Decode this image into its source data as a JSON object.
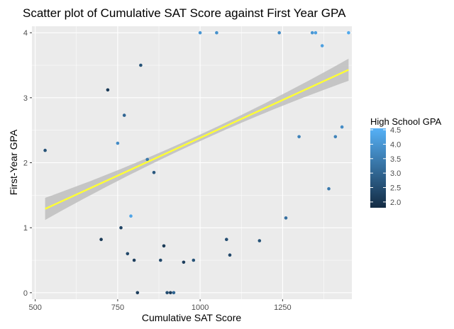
{
  "chart_data": {
    "type": "scatter",
    "title": "Scatter plot of Cumulative SAT Score against First Year GPA",
    "xlabel": "Cumulative SAT Score",
    "ylabel": "First-Year GPA",
    "xlim": [
      490,
      1460
    ],
    "ylim": [
      -0.1,
      4.1
    ],
    "x_ticks": [
      500,
      750,
      1000,
      1250
    ],
    "y_ticks": [
      0,
      1,
      2,
      3,
      4
    ],
    "grid": true,
    "colors": {
      "panel_background": "#ebebeb",
      "gridline": "#ffffff",
      "trend_line": "#ffff33",
      "confidence_band": "#bebebe",
      "low": "#132b43",
      "high": "#56b1f7"
    },
    "legend": {
      "title": "High School GPA",
      "position": "right",
      "ticks": [
        2.0,
        2.5,
        3.0,
        3.5,
        4.0,
        4.5
      ],
      "tick_labels": [
        "2.0",
        "2.5",
        "3.0",
        "3.5",
        "4.0",
        "4.5"
      ],
      "range": [
        1.8,
        4.55
      ]
    },
    "trend": {
      "method": "linear fit",
      "x_range": [
        530,
        1450
      ],
      "y_start": 1.29,
      "y_end": 3.43,
      "band_halfwidth_ends": 0.17,
      "band_halfwidth_mid": 0.05
    },
    "series": [
      {
        "points": [
          [
            530,
            2.19,
            2.6
          ],
          [
            700,
            0.82,
            2.1
          ],
          [
            720,
            3.12,
            2.1
          ],
          [
            750,
            2.3,
            3.8
          ],
          [
            760,
            1.0,
            2.3
          ],
          [
            770,
            2.73,
            3.0
          ],
          [
            780,
            0.6,
            2.4
          ],
          [
            790,
            1.18,
            4.3
          ],
          [
            800,
            0.5,
            2.2
          ],
          [
            810,
            0.0,
            2.2
          ],
          [
            820,
            3.5,
            2.6
          ],
          [
            840,
            2.05,
            3.4
          ],
          [
            860,
            1.85,
            2.7
          ],
          [
            880,
            0.5,
            2.4
          ],
          [
            890,
            0.72,
            2.1
          ],
          [
            900,
            0.0,
            2.5
          ],
          [
            910,
            0.0,
            2.2
          ],
          [
            920,
            0.0,
            3.0
          ],
          [
            950,
            0.47,
            2.2
          ],
          [
            980,
            0.5,
            2.6
          ],
          [
            1000,
            4.0,
            4.0
          ],
          [
            1050,
            4.0,
            3.9
          ],
          [
            1080,
            0.82,
            2.5
          ],
          [
            1090,
            0.58,
            2.4
          ],
          [
            1180,
            0.8,
            2.6
          ],
          [
            1240,
            4.0,
            3.8
          ],
          [
            1260,
            1.15,
            3.2
          ],
          [
            1300,
            2.4,
            3.6
          ],
          [
            1340,
            4.0,
            4.0
          ],
          [
            1350,
            4.0,
            4.2
          ],
          [
            1370,
            3.8,
            4.2
          ],
          [
            1390,
            1.6,
            3.4
          ],
          [
            1410,
            2.4,
            3.6
          ],
          [
            1430,
            2.55,
            3.8
          ],
          [
            1450,
            4.0,
            4.4
          ]
        ]
      }
    ]
  }
}
